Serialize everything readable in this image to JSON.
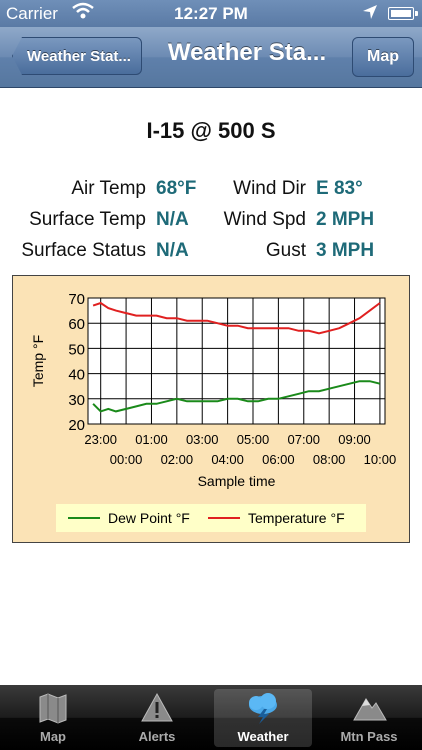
{
  "status_bar": {
    "carrier": "Carrier",
    "time": "12:27 PM"
  },
  "nav": {
    "back_label": "Weather Stat...",
    "title": "Weather Sta...",
    "right_button": "Map"
  },
  "station": {
    "name": "I-15 @ 500 S"
  },
  "readings": {
    "air_temp_label": "Air Temp",
    "air_temp_value": "68°F",
    "surface_temp_label": "Surface Temp",
    "surface_temp_value": "N/A",
    "surface_status_label": "Surface Status",
    "surface_status_value": "N/A",
    "wind_dir_label": "Wind Dir",
    "wind_dir_value": "E 83°",
    "wind_spd_label": "Wind Spd",
    "wind_spd_value": "2 MPH",
    "gust_label": "Gust",
    "gust_value": "3 MPH",
    "value_color": "#1e6a78"
  },
  "chart_data": {
    "type": "line",
    "title": "",
    "xlabel": "Sample time",
    "ylabel": "Temp °F",
    "ylim": [
      20,
      70
    ],
    "yticks": [
      20,
      30,
      40,
      50,
      60,
      70
    ],
    "xlim": [
      22.5,
      34.2
    ],
    "xticks_upper": [
      {
        "x": 23,
        "label": "23:00"
      },
      {
        "x": 25,
        "label": "01:00"
      },
      {
        "x": 27,
        "label": "03:00"
      },
      {
        "x": 29,
        "label": "05:00"
      },
      {
        "x": 31,
        "label": "07:00"
      },
      {
        "x": 33,
        "label": "09:00"
      }
    ],
    "xticks_lower": [
      {
        "x": 24,
        "label": "00:00"
      },
      {
        "x": 26,
        "label": "02:00"
      },
      {
        "x": 28,
        "label": "04:00"
      },
      {
        "x": 30,
        "label": "06:00"
      },
      {
        "x": 32,
        "label": "08:00"
      },
      {
        "x": 34,
        "label": "10:00"
      }
    ],
    "grid": true,
    "legend_position": "bottom",
    "series": [
      {
        "name": "Dew Point °F",
        "color": "#1a8a1a",
        "x": [
          22.7,
          23.0,
          23.3,
          23.6,
          24.0,
          24.4,
          24.8,
          25.2,
          25.6,
          26.0,
          26.4,
          26.8,
          27.2,
          27.6,
          28.0,
          28.4,
          28.8,
          29.2,
          29.6,
          30.0,
          30.4,
          30.8,
          31.2,
          31.6,
          32.0,
          32.4,
          32.8,
          33.2,
          33.6,
          34.0
        ],
        "values": [
          28,
          25,
          26,
          25,
          26,
          27,
          28,
          28,
          29,
          30,
          29,
          29,
          29,
          29,
          30,
          30,
          29,
          29,
          30,
          30,
          31,
          32,
          33,
          33,
          34,
          35,
          36,
          37,
          37,
          36
        ]
      },
      {
        "name": "Temperature °F",
        "color": "#e02020",
        "x": [
          22.7,
          23.0,
          23.3,
          23.6,
          24.0,
          24.4,
          24.8,
          25.2,
          25.6,
          26.0,
          26.4,
          26.8,
          27.2,
          27.6,
          28.0,
          28.4,
          28.8,
          29.2,
          29.6,
          30.0,
          30.4,
          30.8,
          31.2,
          31.6,
          32.0,
          32.4,
          32.8,
          33.2,
          33.6,
          34.0
        ],
        "values": [
          67,
          68,
          66,
          65,
          64,
          63,
          63,
          63,
          62,
          62,
          61,
          61,
          61,
          60,
          59,
          59,
          58,
          58,
          58,
          58,
          58,
          57,
          57,
          56,
          57,
          58,
          60,
          62,
          65,
          68
        ]
      }
    ]
  },
  "tabs": [
    {
      "label": "Map",
      "icon": "map-icon",
      "selected": false
    },
    {
      "label": "Alerts",
      "icon": "alert-icon",
      "selected": false
    },
    {
      "label": "Weather",
      "icon": "weather-icon",
      "selected": true
    },
    {
      "label": "Mtn Pass",
      "icon": "mountain-icon",
      "selected": false
    }
  ]
}
